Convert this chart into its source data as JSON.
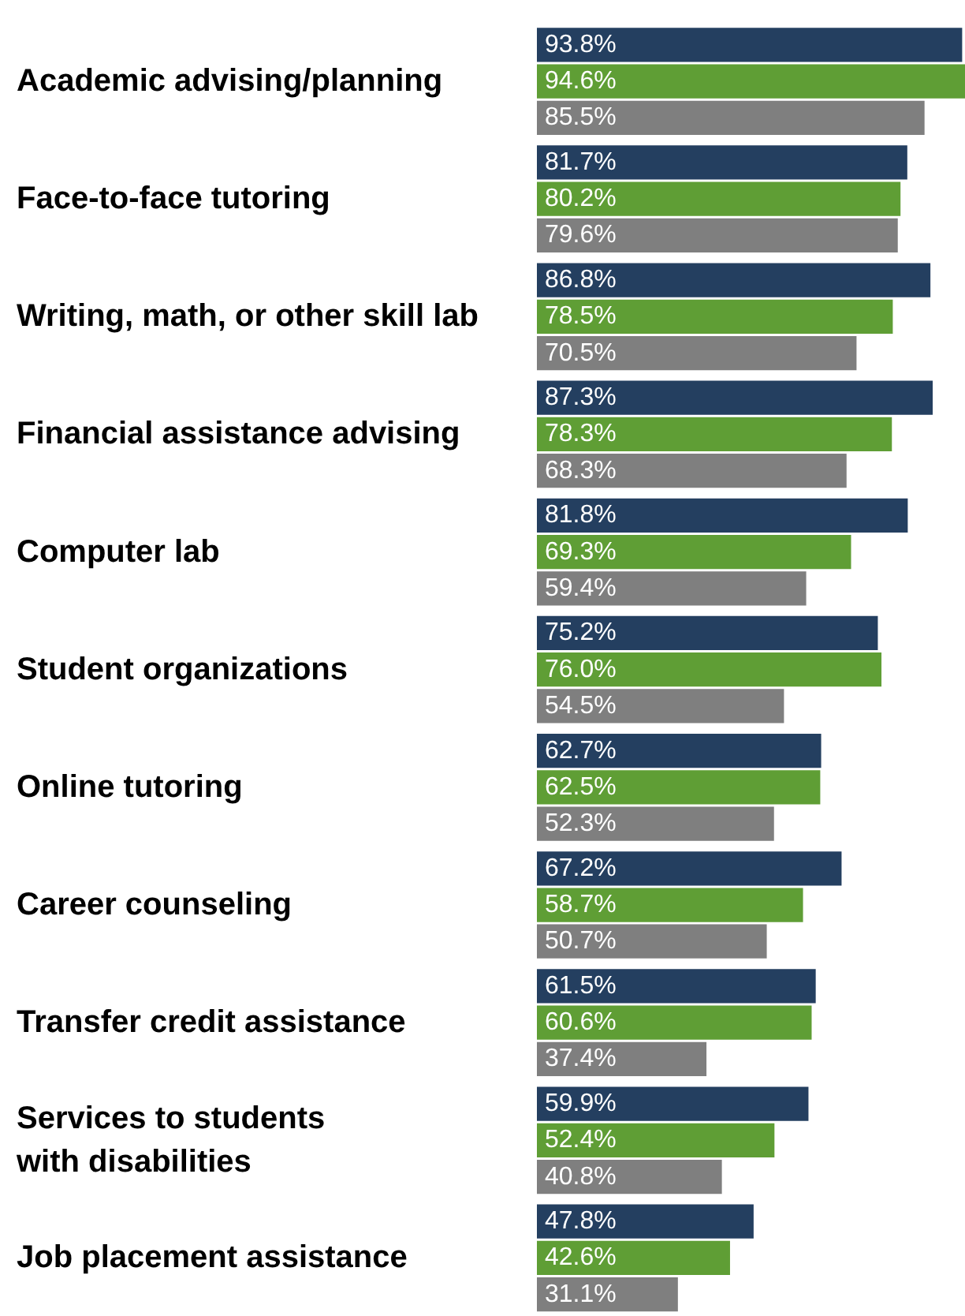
{
  "chart_data": {
    "type": "bar",
    "orientation": "horizontal",
    "categories": [
      "Academic advising/planning",
      "Face-to-face tutoring",
      "Writing, math, or other skill lab",
      "Financial assistance advising",
      "Computer lab",
      "Student organizations",
      "Online tutoring",
      "Career counseling",
      "Transfer credit assistance",
      "Services to students with disabilities",
      "Job placement assistance"
    ],
    "series": [
      {
        "color": "#243f60",
        "values": [
          93.8,
          81.7,
          86.8,
          87.3,
          81.8,
          75.2,
          62.7,
          67.2,
          61.5,
          59.9,
          47.8
        ],
        "value_labels": [
          "93.8%",
          "81.7%",
          "86.8%",
          "87.3%",
          "81.8%",
          "75.2%",
          "62.7%",
          "67.2%",
          "61.5%",
          "59.9%",
          "47.8%"
        ]
      },
      {
        "color": "#5f9e35",
        "values": [
          94.6,
          80.2,
          78.5,
          78.3,
          69.3,
          76.0,
          62.5,
          58.7,
          60.6,
          52.4,
          42.6
        ],
        "value_labels": [
          "94.6%",
          "80.2%",
          "78.5%",
          "78.3%",
          "69.3%",
          "76.0%",
          "62.5%",
          "58.7%",
          "60.6%",
          "52.4%",
          "42.6%"
        ]
      },
      {
        "color": "#7f7f7f",
        "values": [
          85.5,
          79.6,
          70.5,
          68.3,
          59.4,
          54.5,
          52.3,
          50.7,
          37.4,
          40.8,
          31.1
        ],
        "value_labels": [
          "85.5%",
          "79.6%",
          "70.5%",
          "68.3%",
          "59.4%",
          "54.5%",
          "52.3%",
          "50.7%",
          "37.4%",
          "40.8%",
          "31.1%"
        ]
      }
    ]
  }
}
